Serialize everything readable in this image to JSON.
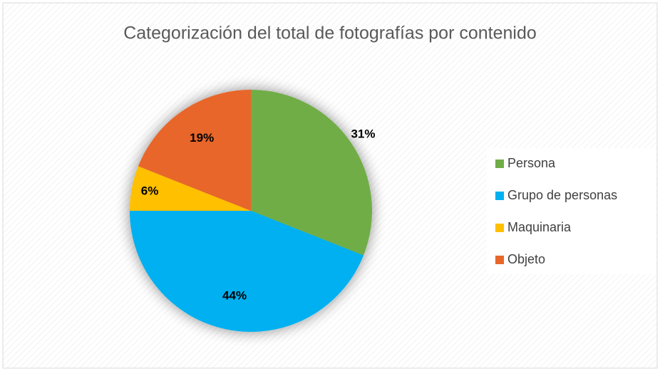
{
  "chart_data": {
    "type": "pie",
    "title": "Categorización del total de fotografías por contenido",
    "categories": [
      "Persona",
      "Grupo de personas",
      "Maquinaria",
      "Objeto"
    ],
    "values": [
      31,
      44,
      6,
      19
    ],
    "value_labels": [
      "31%",
      "44%",
      "6%",
      "19%"
    ],
    "colors": [
      "#70ad47",
      "#00b0f0",
      "#ffc000",
      "#e8662a"
    ],
    "legend": "right"
  }
}
